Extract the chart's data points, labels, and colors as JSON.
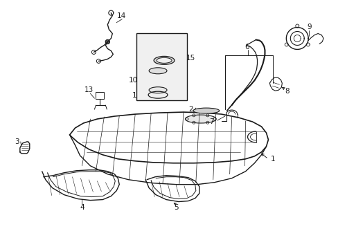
{
  "background_color": "#ffffff",
  "line_color": "#1a1a1a",
  "fig_width": 4.89,
  "fig_height": 3.6,
  "dpi": 100,
  "font_size": 7.5,
  "font_size_small": 6.5
}
